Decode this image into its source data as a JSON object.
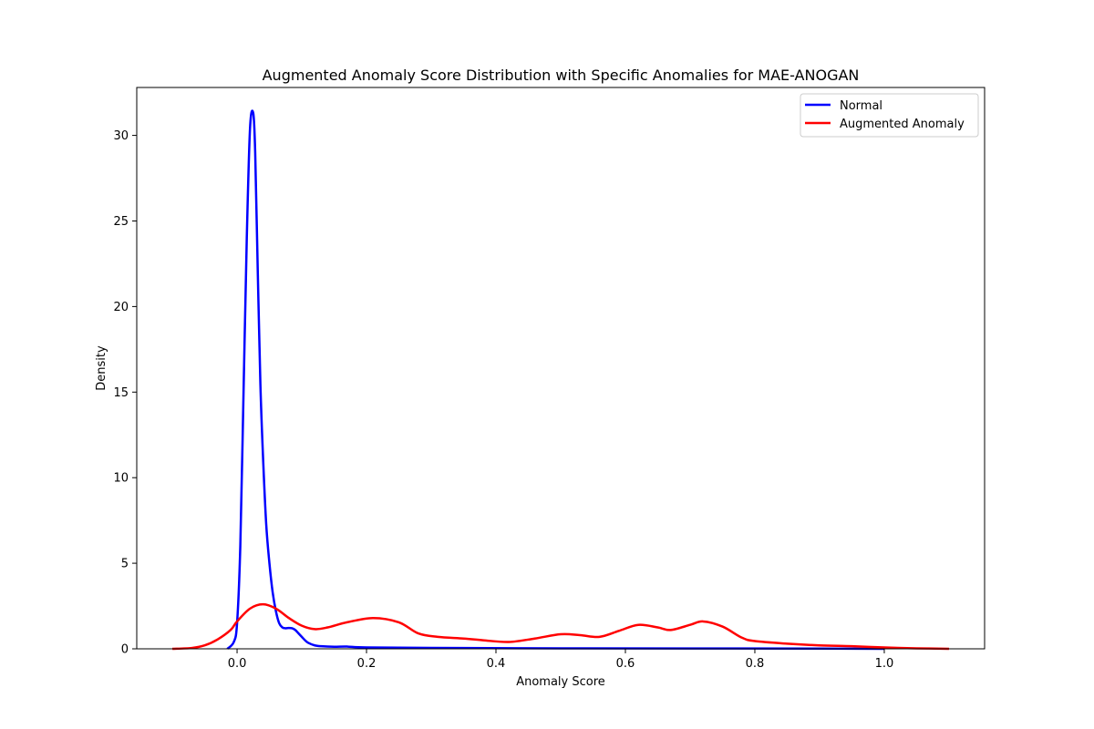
{
  "chart_data": {
    "type": "line",
    "title": "Augmented Anomaly Score Distribution with Specific Anomalies for MAE-ANOGAN",
    "xlabel": "Anomaly Score",
    "ylabel": "Density",
    "xlim": [
      -0.155,
      1.155
    ],
    "ylim": [
      0,
      32.8
    ],
    "xticks": [
      0.0,
      0.2,
      0.4,
      0.6,
      0.8,
      1.0
    ],
    "xtick_labels": [
      "0.0",
      "0.2",
      "0.4",
      "0.6",
      "0.8",
      "1.0"
    ],
    "yticks": [
      0,
      5,
      10,
      15,
      20,
      25,
      30
    ],
    "ytick_labels": [
      "0",
      "5",
      "10",
      "15",
      "20",
      "25",
      "30"
    ],
    "grid": false,
    "legend_position": "top-right",
    "series": [
      {
        "name": "Normal",
        "color": "#0000ff",
        "x": [
          -0.015,
          -0.005,
          0.0,
          0.005,
          0.01,
          0.015,
          0.02,
          0.025,
          0.028,
          0.032,
          0.036,
          0.04,
          0.045,
          0.05,
          0.055,
          0.06,
          0.065,
          0.07,
          0.075,
          0.08,
          0.085,
          0.09,
          0.095,
          0.1,
          0.105,
          0.11,
          0.12,
          0.13,
          0.15,
          0.17,
          0.2,
          0.3,
          0.5,
          0.7,
          0.9,
          1.0
        ],
        "y": [
          0.0,
          0.4,
          1.5,
          6.0,
          15.0,
          24.0,
          30.4,
          31.3,
          29.0,
          22.0,
          15.5,
          11.3,
          7.3,
          5.0,
          3.3,
          2.2,
          1.5,
          1.25,
          1.2,
          1.22,
          1.2,
          1.1,
          0.9,
          0.7,
          0.5,
          0.35,
          0.2,
          0.15,
          0.12,
          0.13,
          0.08,
          0.05,
          0.03,
          0.02,
          0.01,
          0.0
        ]
      },
      {
        "name": "Augmented Anomaly",
        "color": "#ff0000",
        "x": [
          -0.1,
          -0.07,
          -0.05,
          -0.03,
          -0.01,
          0.0,
          0.02,
          0.04,
          0.06,
          0.08,
          0.1,
          0.12,
          0.14,
          0.17,
          0.21,
          0.25,
          0.28,
          0.31,
          0.35,
          0.38,
          0.42,
          0.46,
          0.5,
          0.53,
          0.56,
          0.59,
          0.62,
          0.65,
          0.67,
          0.7,
          0.72,
          0.75,
          0.78,
          0.8,
          0.85,
          0.9,
          0.95,
          1.0,
          1.05,
          1.1
        ],
        "y": [
          0.0,
          0.05,
          0.2,
          0.55,
          1.1,
          1.6,
          2.35,
          2.6,
          2.35,
          1.8,
          1.35,
          1.15,
          1.25,
          1.55,
          1.8,
          1.55,
          0.9,
          0.7,
          0.6,
          0.5,
          0.4,
          0.6,
          0.85,
          0.8,
          0.7,
          1.05,
          1.4,
          1.25,
          1.1,
          1.4,
          1.6,
          1.3,
          0.65,
          0.45,
          0.3,
          0.2,
          0.15,
          0.08,
          0.03,
          0.0
        ]
      }
    ]
  }
}
